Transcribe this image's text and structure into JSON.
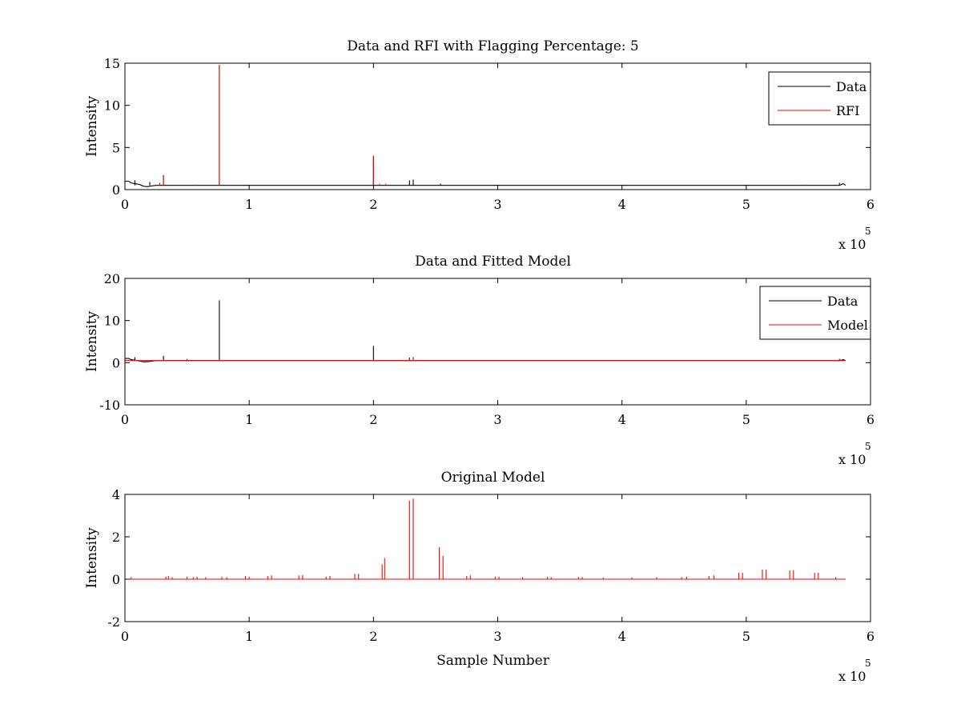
{
  "figure": {
    "background": "#ffffff",
    "colors": {
      "Data": "#000000",
      "RFI": "#ff0000",
      "Model": "#ff0000",
      "Original": "#ff0000"
    }
  },
  "chart_data": [
    {
      "type": "line",
      "title": "Data and RFI with Flagging Percentage: 5",
      "xlabel": "",
      "ylabel": "Intensity",
      "xlim": [
        0,
        600000
      ],
      "ylim": [
        0,
        15
      ],
      "xticks": [
        0,
        100000,
        200000,
        300000,
        400000,
        500000,
        600000
      ],
      "xtick_labels": [
        "0",
        "1",
        "2",
        "3",
        "4",
        "5",
        "6"
      ],
      "yticks": [
        0,
        5,
        10,
        15
      ],
      "ytick_labels": [
        "0",
        "5",
        "10",
        "15"
      ],
      "x_multiplier": "x 10",
      "x_multiplier_exp": "5",
      "legend": {
        "position": "top-right",
        "entries": [
          "Data",
          "RFI"
        ]
      },
      "series": [
        {
          "name": "Data",
          "color": "#000000",
          "baseline": 0.5,
          "x_end": 580000,
          "points": [
            [
              0,
              1.0
            ],
            [
              3000,
              1.0
            ],
            [
              5000,
              0.8
            ],
            [
              8000,
              0.7
            ],
            [
              12000,
              0.6
            ],
            [
              15000,
              0.4
            ],
            [
              18000,
              0.35
            ],
            [
              22000,
              0.45
            ],
            [
              25000,
              0.5
            ],
            [
              575000,
              0.5
            ],
            [
              578000,
              0.7
            ],
            [
              580000,
              0.5
            ]
          ],
          "spikes": [
            [
              8000,
              1.1
            ],
            [
              20000,
              0.9
            ],
            [
              31000,
              1.7
            ],
            [
              76000,
              14.8
            ],
            [
              200000,
              4.0
            ],
            [
              229000,
              1.1
            ],
            [
              232000,
              1.2
            ],
            [
              254000,
              0.7
            ],
            [
              575000,
              0.8
            ]
          ]
        },
        {
          "name": "RFI",
          "color": "#ff0000",
          "baseline": null,
          "x_end": 580000,
          "points": [],
          "spikes": [
            [
              28000,
              0.8
            ],
            [
              31000,
              1.6
            ],
            [
              57000,
              0.6
            ],
            [
              76000,
              14.8
            ],
            [
              200000,
              4.0
            ],
            [
              205000,
              0.7
            ],
            [
              210000,
              0.7
            ],
            [
              548000,
              0.6
            ]
          ]
        }
      ]
    },
    {
      "type": "line",
      "title": "Data and Fitted Model",
      "xlabel": "",
      "ylabel": "Intensity",
      "xlim": [
        0,
        600000
      ],
      "ylim": [
        -10,
        20
      ],
      "xticks": [
        0,
        100000,
        200000,
        300000,
        400000,
        500000,
        600000
      ],
      "xtick_labels": [
        "0",
        "1",
        "2",
        "3",
        "4",
        "5",
        "6"
      ],
      "yticks": [
        -10,
        0,
        10,
        20
      ],
      "ytick_labels": [
        "-10",
        "0",
        "10",
        "20"
      ],
      "x_multiplier": "x 10",
      "x_multiplier_exp": "5",
      "legend": {
        "position": "top-right",
        "entries": [
          "Data",
          "Model"
        ]
      },
      "series": [
        {
          "name": "Data",
          "color": "#000000",
          "baseline": 0.5,
          "x_end": 580000,
          "points": [
            [
              0,
              1.0
            ],
            [
              3000,
              1.0
            ],
            [
              5000,
              0.7
            ],
            [
              10000,
              0.5
            ],
            [
              15000,
              0.2
            ],
            [
              20000,
              0.3
            ],
            [
              25000,
              0.5
            ],
            [
              575000,
              0.5
            ],
            [
              578000,
              0.7
            ],
            [
              580000,
              0.5
            ]
          ],
          "spikes": [
            [
              8000,
              1.3
            ],
            [
              31000,
              1.6
            ],
            [
              50000,
              0.8
            ],
            [
              76000,
              14.8
            ],
            [
              200000,
              4.0
            ],
            [
              229000,
              1.2
            ],
            [
              232000,
              1.3
            ],
            [
              575000,
              0.9
            ]
          ]
        },
        {
          "name": "Model",
          "color": "#ff0000",
          "baseline": 0.5,
          "x_end": 580000,
          "points": [],
          "spikes": [
            [
              229000,
              1.0
            ],
            [
              232000,
              1.1
            ]
          ]
        }
      ]
    },
    {
      "type": "line",
      "title": "Original Model",
      "xlabel": "Sample Number",
      "ylabel": "Intensity",
      "xlim": [
        0,
        600000
      ],
      "ylim": [
        -2,
        4
      ],
      "xticks": [
        0,
        100000,
        200000,
        300000,
        400000,
        500000,
        600000
      ],
      "xtick_labels": [
        "0",
        "1",
        "2",
        "3",
        "4",
        "5",
        "6"
      ],
      "yticks": [
        -2,
        0,
        2,
        4
      ],
      "ytick_labels": [
        "-2",
        "0",
        "2",
        "4"
      ],
      "x_multiplier": "x 10",
      "x_multiplier_exp": "5",
      "legend": null,
      "series": [
        {
          "name": "",
          "color": "#ff0000",
          "baseline": 0.0,
          "x_end": 580000,
          "points": [],
          "spikes": [
            [
              5000,
              0.1
            ],
            [
              33000,
              0.12
            ],
            [
              35000,
              0.15
            ],
            [
              38000,
              0.1
            ],
            [
              50000,
              0.12
            ],
            [
              55000,
              0.1
            ],
            [
              58000,
              0.12
            ],
            [
              65000,
              0.1
            ],
            [
              78000,
              0.12
            ],
            [
              82000,
              0.1
            ],
            [
              97000,
              0.15
            ],
            [
              100000,
              0.12
            ],
            [
              115000,
              0.15
            ],
            [
              118000,
              0.18
            ],
            [
              140000,
              0.18
            ],
            [
              143000,
              0.2
            ],
            [
              162000,
              0.12
            ],
            [
              165000,
              0.15
            ],
            [
              185000,
              0.25
            ],
            [
              188000,
              0.25
            ],
            [
              207000,
              0.7
            ],
            [
              209000,
              1.0
            ],
            [
              229000,
              3.7
            ],
            [
              232000,
              3.8
            ],
            [
              253000,
              1.5
            ],
            [
              256000,
              1.1
            ],
            [
              275000,
              0.15
            ],
            [
              278000,
              0.18
            ],
            [
              298000,
              0.12
            ],
            [
              301000,
              0.12
            ],
            [
              320000,
              0.1
            ],
            [
              340000,
              0.12
            ],
            [
              343000,
              0.1
            ],
            [
              365000,
              0.1
            ],
            [
              368000,
              0.1
            ],
            [
              385000,
              0.08
            ],
            [
              408000,
              0.08
            ],
            [
              428000,
              0.1
            ],
            [
              448000,
              0.1
            ],
            [
              452000,
              0.12
            ],
            [
              470000,
              0.15
            ],
            [
              474000,
              0.18
            ],
            [
              494000,
              0.3
            ],
            [
              497000,
              0.3
            ],
            [
              513000,
              0.45
            ],
            [
              516000,
              0.45
            ],
            [
              535000,
              0.42
            ],
            [
              538000,
              0.42
            ],
            [
              555000,
              0.3
            ],
            [
              558000,
              0.3
            ],
            [
              572000,
              0.1
            ]
          ]
        }
      ]
    }
  ]
}
